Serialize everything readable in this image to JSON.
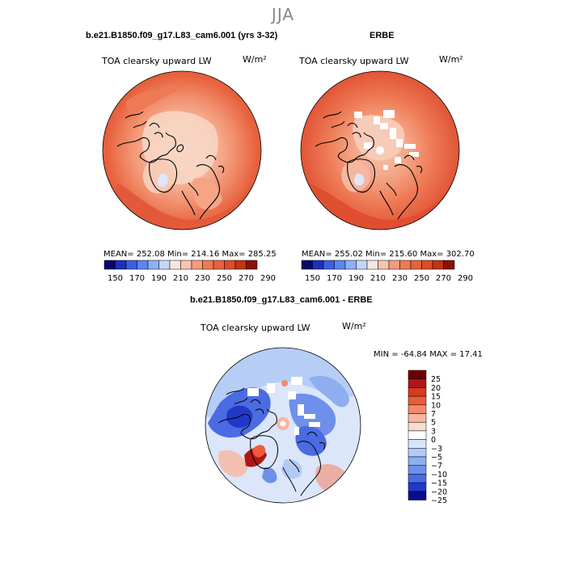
{
  "figure": {
    "title": "JJA"
  },
  "panels": [
    {
      "title": "b.e21.B1850.f09_g17.L83_cam6.001 (yrs 3-32)",
      "variable": "TOA clearsky upward LW",
      "units": "W/m²",
      "stats": "MEAN= 252.08   Min= 214.16   Max= 285.25",
      "colorbar_labels": [
        "150",
        "170",
        "190",
        "210",
        "230",
        "250",
        "270",
        "290"
      ]
    },
    {
      "title": "ERBE",
      "variable": "TOA clearsky upward LW",
      "units": "W/m²",
      "stats": "MEAN= 255.02   Min= 215.60   Max= 302.70",
      "colorbar_labels": [
        "150",
        "170",
        "190",
        "210",
        "230",
        "250",
        "270",
        "290"
      ]
    },
    {
      "title": "b.e21.B1850.f09_g17.L83_cam6.001 - ERBE",
      "variable": "TOA clearsky upward LW",
      "units": "W/m²",
      "stats": "MIN = -64.84  MAX =   17.41",
      "colorbar_labels": [
        "25",
        "20",
        "15",
        "10",
        "7",
        "5",
        "3",
        "0",
        "−3",
        "−5",
        "−7",
        "−10",
        "−15",
        "−20",
        "−25"
      ]
    }
  ],
  "colors": {
    "abs_scale": [
      "#08086b",
      "#1d30b8",
      "#3b5fe0",
      "#5b86f0",
      "#8db0f5",
      "#c2d6fa",
      "#f6e6df",
      "#f7c4ad",
      "#f59b7e",
      "#ee7a55",
      "#e8613d",
      "#dd4b2a",
      "#c13415",
      "#8a1206"
    ],
    "diff_scale": [
      "#6b0000",
      "#b01616",
      "#d83a20",
      "#ec5c3a",
      "#f3896a",
      "#f7b79f",
      "#f9dcd1",
      "#ffffff",
      "#d6e4fb",
      "#b2cbf6",
      "#8eaef0",
      "#6f90ea",
      "#4b6be3",
      "#2238c8",
      "#0a0d8a"
    ]
  },
  "chart_data": {
    "type": "heatmap",
    "description_note": "",
    "panels": [
      {
        "name": "b.e21.B1850.f09_g17.L83_cam6.001 (yrs 3-32)",
        "mean": 252.08,
        "min": 214.16,
        "max": 285.25,
        "levels": [
          150,
          170,
          190,
          210,
          230,
          250,
          270,
          290
        ]
      },
      {
        "name": "ERBE",
        "mean": 255.02,
        "min": 215.6,
        "max": 302.7,
        "levels": [
          150,
          170,
          190,
          210,
          230,
          250,
          270,
          290
        ]
      },
      {
        "name": "b.e21.B1850.f09_g17.L83_cam6.001 - ERBE",
        "min": -64.84,
        "max": 17.41,
        "levels": [
          -25,
          -20,
          -15,
          -10,
          -7,
          -5,
          -3,
          0,
          3,
          5,
          7,
          10,
          15,
          20,
          25
        ]
      }
    ]
  }
}
